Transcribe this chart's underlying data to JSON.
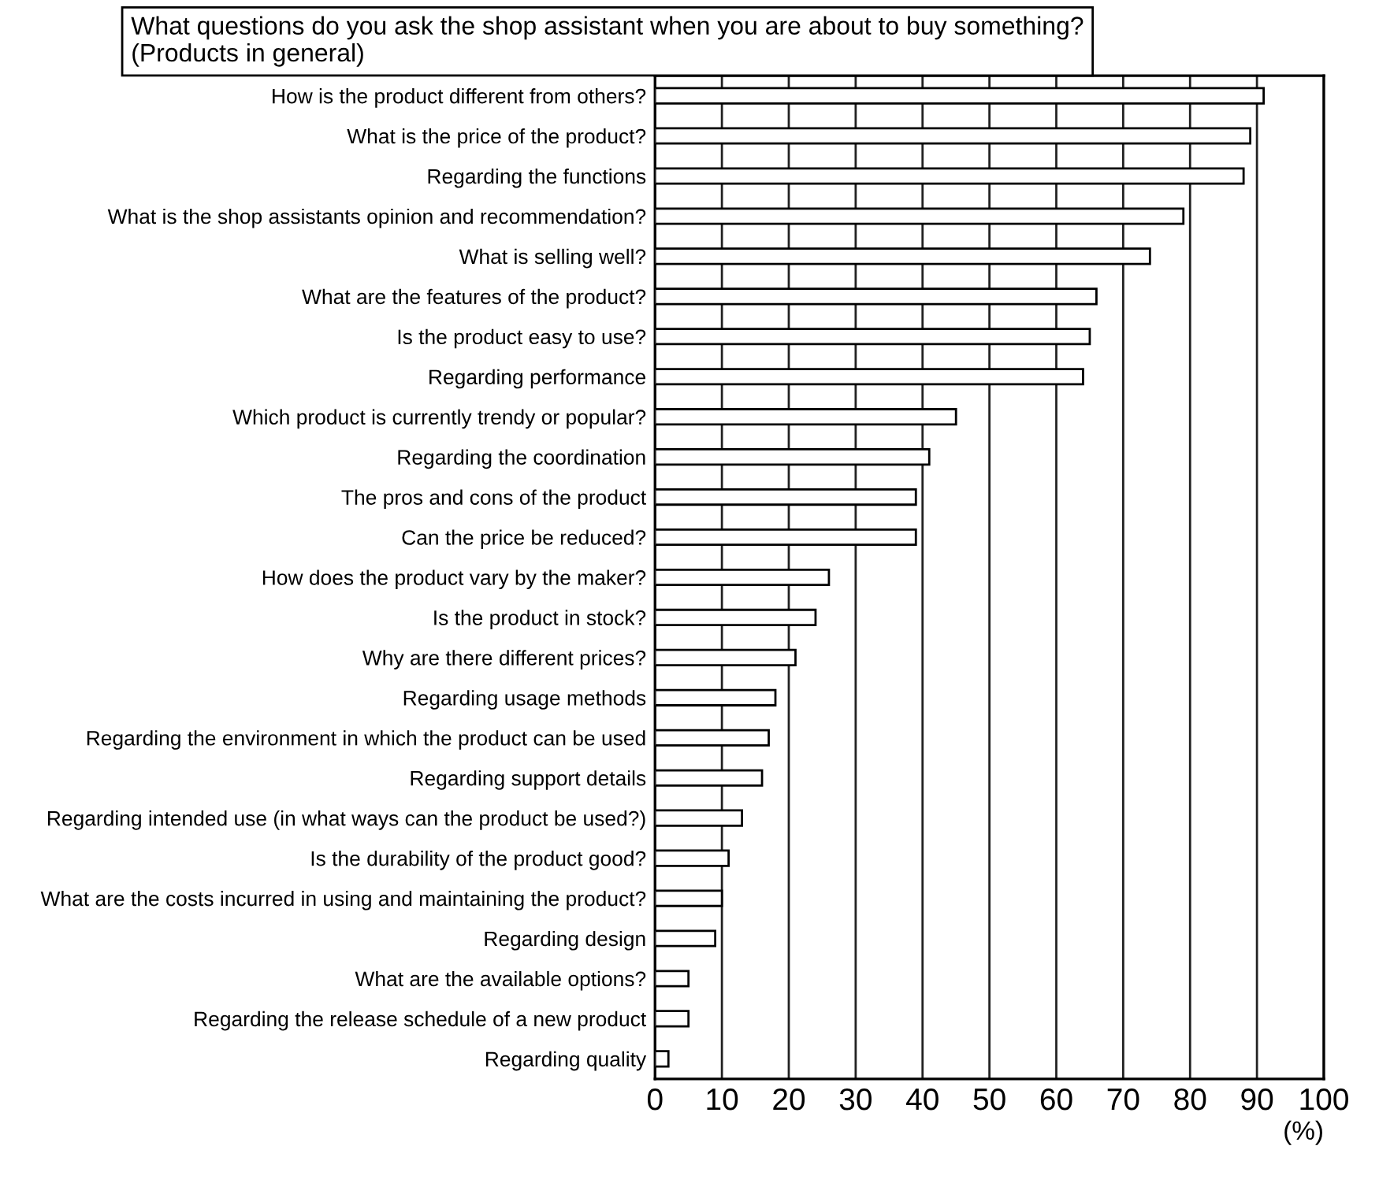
{
  "chart_data": {
    "type": "bar",
    "orientation": "horizontal",
    "title": "What questions do you ask the shop assistant when you are about to buy something?\n(Products in general)",
    "xlabel": "(%)",
    "categories": [
      "How is the product different from others?",
      "What is the price of the product?",
      "Regarding the functions",
      "What is the shop assistants opinion and recommendation?",
      "What is selling well?",
      "What are the features of the product?",
      "Is the product easy to use?",
      "Regarding performance",
      "Which product is currently trendy or popular?",
      "Regarding the coordination",
      "The pros and cons of the product",
      "Can the price be reduced?",
      "How does the product vary by the maker?",
      "Is the product in stock?",
      "Why are there different prices?",
      "Regarding usage methods",
      "Regarding the environment in which the product can be used",
      "Regarding support details",
      "Regarding intended use (in what ways can the product be used?)",
      "Is the durability of the product good?",
      "What are the costs incurred in using and maintaining the product?",
      "Regarding design",
      "What are the available options?",
      "Regarding the release schedule of a new product",
      "Regarding quality"
    ],
    "values": [
      91,
      89,
      88,
      79,
      74,
      66,
      65,
      64,
      45,
      41,
      39,
      39,
      26,
      24,
      21,
      18,
      17,
      16,
      13,
      11,
      10,
      9,
      5,
      5,
      2
    ],
    "color": "#ffffff",
    "xlim": [
      0,
      100
    ],
    "xticks": [
      0,
      10,
      20,
      30,
      40,
      50,
      60,
      70,
      80,
      90,
      100
    ],
    "grid": "x"
  }
}
